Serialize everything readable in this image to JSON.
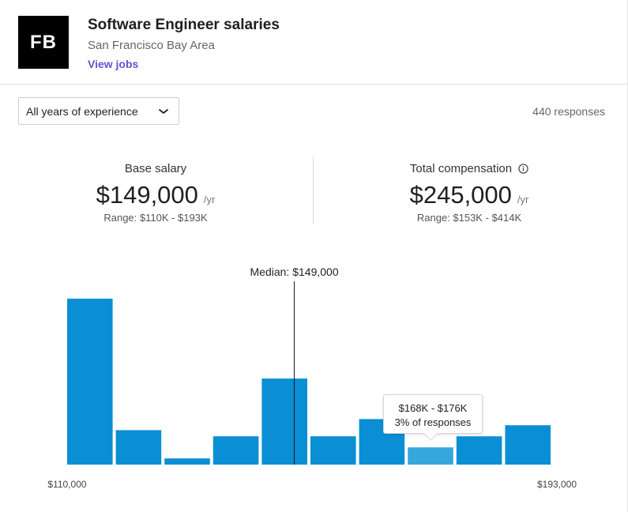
{
  "header": {
    "logo_text": "FB",
    "title": "Software Engineer salaries",
    "location": "San Francisco Bay Area",
    "view_jobs": "View jobs"
  },
  "filter": {
    "selected": "All years of experience",
    "responses": "440 responses"
  },
  "base_salary": {
    "label": "Base salary",
    "value": "$149,000",
    "unit": "/yr",
    "range": "Range: $110K - $193K"
  },
  "total_comp": {
    "label": "Total compensation",
    "value": "$245,000",
    "unit": "/yr",
    "range": "Range: $153K - $414K"
  },
  "tooltip": {
    "range": "$168K - $176K",
    "share": "3% of responses"
  },
  "colors": {
    "bar": "#0a8fd4",
    "bar_highlight": "#36a7dd",
    "link": "#6a4fd0"
  },
  "chart_data": {
    "type": "bar",
    "x_min_label": "$110,000",
    "x_max_label": "$193,000",
    "median_label": "Median: $149,000",
    "x_range": [
      110000,
      193000
    ],
    "median": 149000,
    "highlighted_index": 7,
    "values": [
      13.5,
      2.8,
      0.5,
      2.3,
      7.0,
      2.3,
      3.7,
      1.4,
      2.3,
      3.2
    ]
  }
}
